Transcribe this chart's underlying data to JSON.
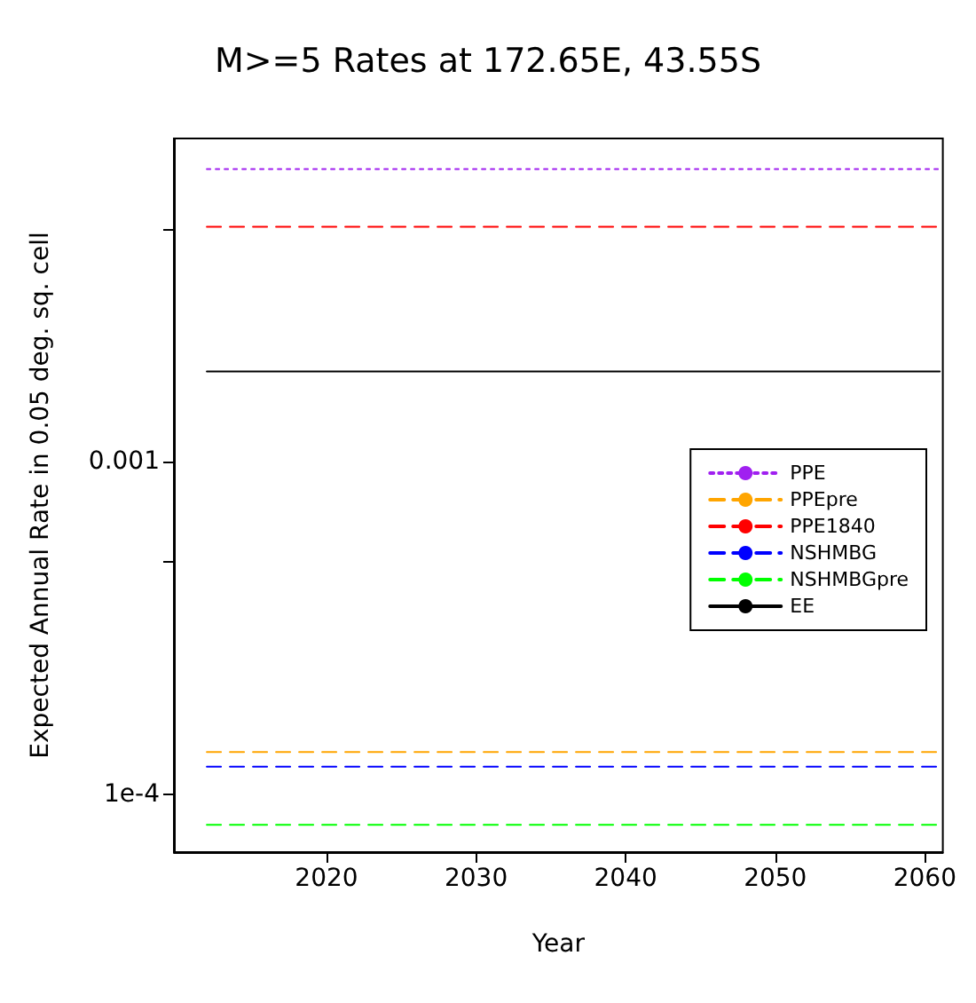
{
  "chart_data": {
    "type": "line",
    "title": "M>=5 Rates at 172.65E, 43.55S",
    "xlabel": "Year",
    "ylabel": "Expected Annual Rate in 0.05 deg. sq. cell",
    "log": "y",
    "grid": false,
    "legend": "right",
    "marker": "none",
    "xlim": [
      2009.8,
      2061.2
    ],
    "xticks": [
      2020,
      2030,
      2040,
      2050,
      2060
    ],
    "ylim": [
      6.7e-05,
      0.0094
    ],
    "yticks": [
      {
        "value": 0.0001,
        "label": "1e-4"
      },
      {
        "value": 0.0005,
        "label": null
      },
      {
        "value": 0.001,
        "label": "0.001"
      },
      {
        "value": 0.005,
        "label": null
      }
    ],
    "x": [
      2012,
      2061
    ],
    "series": [
      {
        "name": "PPE",
        "color": "#a020f0",
        "line_style": "dotted",
        "values": [
          0.0076,
          0.0076
        ]
      },
      {
        "name": "PPEpre",
        "color": "#ffa500",
        "line_style": "dashed",
        "values": [
          0.000134,
          0.000134
        ]
      },
      {
        "name": "PPE1840",
        "color": "#ff0000",
        "line_style": "dashed",
        "values": [
          0.0051,
          0.0051
        ]
      },
      {
        "name": "NSHMBG",
        "color": "#0000ff",
        "line_style": "dashed",
        "values": [
          0.000121,
          0.000121
        ]
      },
      {
        "name": "NSHMBGpre",
        "color": "#00ff00",
        "line_style": "dashed",
        "values": [
          8.1e-05,
          8.1e-05
        ]
      },
      {
        "name": "EE",
        "color": "#000000",
        "line_style": "solid",
        "values": [
          0.00187,
          0.00187
        ]
      }
    ]
  }
}
